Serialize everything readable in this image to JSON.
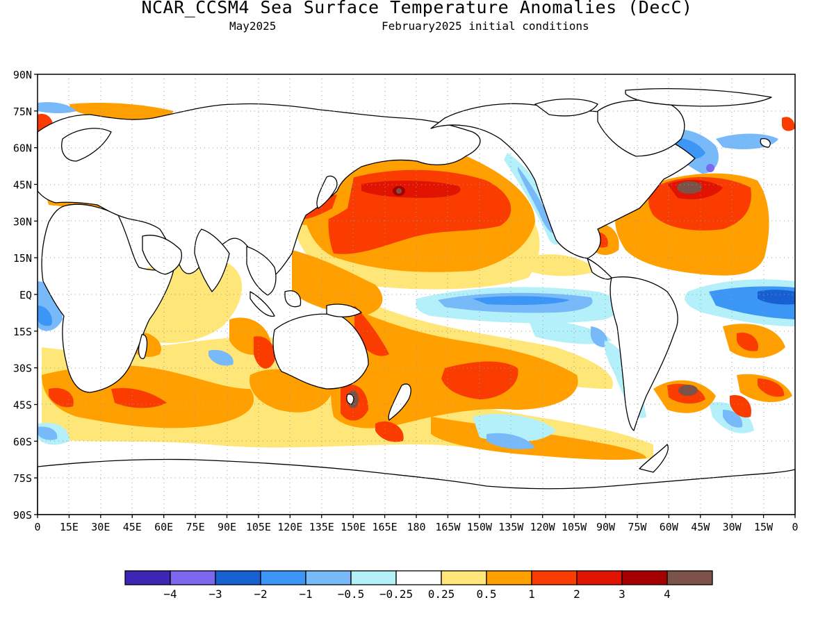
{
  "header": {
    "title": "NCAR_CCSM4 Sea Surface Temperature Anomalies (DecC)",
    "valid_month": "May2025",
    "init_conditions": "February2025 initial conditions"
  },
  "map": {
    "lat_ticks": [
      "90N",
      "75N",
      "60N",
      "45N",
      "30N",
      "15N",
      "EQ",
      "15S",
      "30S",
      "45S",
      "60S",
      "75S",
      "90S"
    ],
    "lon_ticks": [
      "0",
      "15E",
      "30E",
      "45E",
      "60E",
      "75E",
      "90E",
      "105E",
      "120E",
      "135E",
      "150E",
      "165E",
      "180",
      "165W",
      "150W",
      "135W",
      "120W",
      "105W",
      "90W",
      "75W",
      "60W",
      "45W",
      "30W",
      "15W",
      "0"
    ],
    "gridlines": "dotted",
    "land_color": "#ffffff",
    "coastline_color": "#000000"
  },
  "colorbar": {
    "colors": [
      "#3c26b4",
      "#7b68ee",
      "#1660d2",
      "#3c96f5",
      "#78b9fa",
      "#b4f0fa",
      "#ffffff",
      "#ffe678",
      "#ffa000",
      "#fa3c00",
      "#e01400",
      "#a50000",
      "#7a5248"
    ],
    "labels": [
      "−4",
      "−3",
      "−2",
      "−1",
      "−0.5",
      "−0.25",
      "0.25",
      "0.5",
      "1",
      "2",
      "3",
      "4"
    ]
  }
}
